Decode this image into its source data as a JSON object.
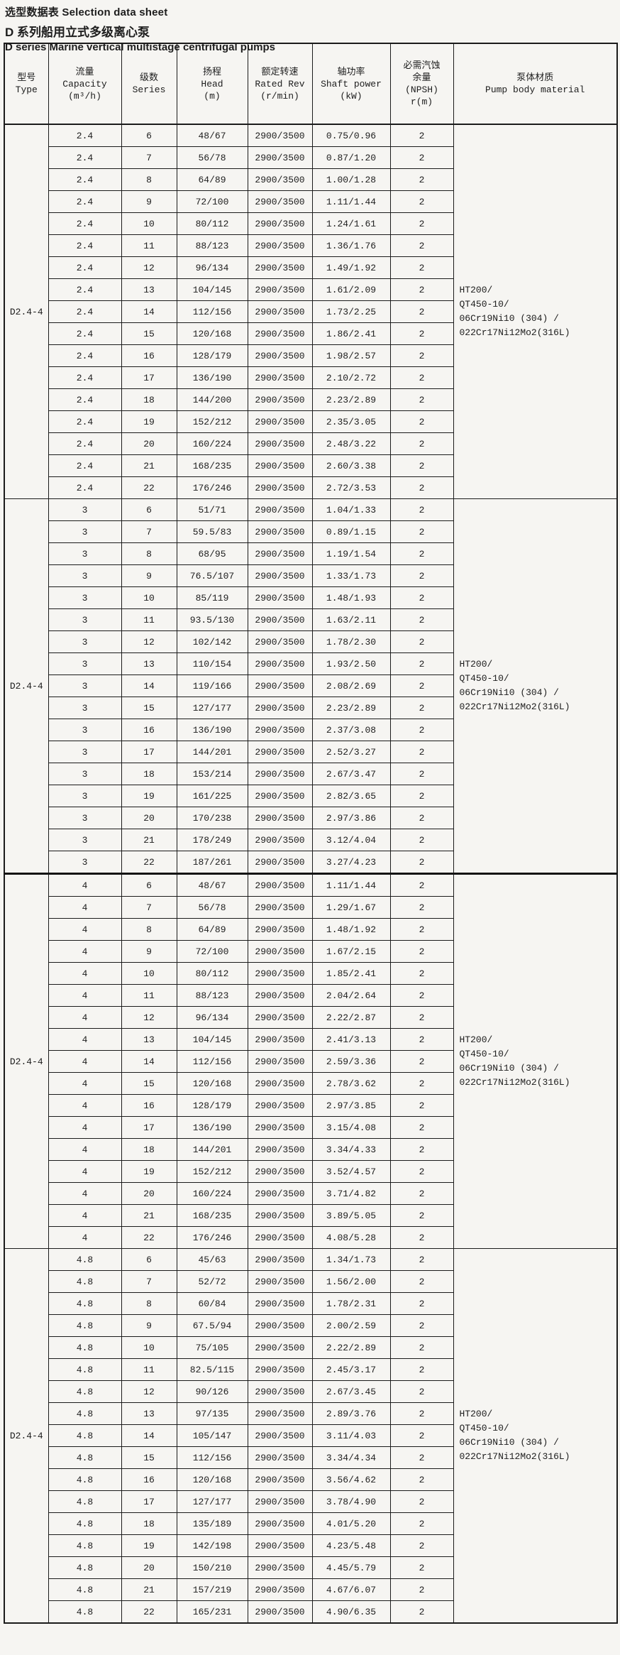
{
  "page": {
    "title_line1": "选型数据表  Selection data sheet",
    "title_line2": "D 系列船用立式多级离心泵",
    "title_line3": "D series Marine vertical multistage centrifugal pumps"
  },
  "table": {
    "headers": [
      {
        "lines": [
          "型号",
          "Type"
        ]
      },
      {
        "lines": [
          "流量",
          "Capacity",
          "(m³/h)"
        ]
      },
      {
        "lines": [
          "级数",
          "Series"
        ]
      },
      {
        "lines": [
          "扬程",
          "Head",
          "(m)"
        ]
      },
      {
        "lines": [
          "额定转速",
          "Rated Rev",
          "(r/min)"
        ]
      },
      {
        "lines": [
          "轴功率",
          "Shaft power",
          "(kW)"
        ]
      },
      {
        "lines": [
          "必需汽蚀",
          "余量",
          "(NPSH)",
          "r(m)"
        ]
      },
      {
        "lines": [
          "泵体材质",
          "Pump body material"
        ]
      }
    ],
    "material_lines": [
      "HT200/",
      "QT450-10/",
      "06Cr19Ni10 (304) /",
      "022Cr17Ni12Mo2(316L)"
    ],
    "blocks": [
      {
        "type": "D2.4-4",
        "capacity": "2.4",
        "rows": [
          {
            "series": "6",
            "head": "48/67",
            "rev": "2900/3500",
            "power": "0.75/0.96",
            "npsh": "2"
          },
          {
            "series": "7",
            "head": "56/78",
            "rev": "2900/3500",
            "power": "0.87/1.20",
            "npsh": "2"
          },
          {
            "series": "8",
            "head": "64/89",
            "rev": "2900/3500",
            "power": "1.00/1.28",
            "npsh": "2"
          },
          {
            "series": "9",
            "head": "72/100",
            "rev": "2900/3500",
            "power": "1.11/1.44",
            "npsh": "2"
          },
          {
            "series": "10",
            "head": "80/112",
            "rev": "2900/3500",
            "power": "1.24/1.61",
            "npsh": "2"
          },
          {
            "series": "11",
            "head": "88/123",
            "rev": "2900/3500",
            "power": "1.36/1.76",
            "npsh": "2"
          },
          {
            "series": "12",
            "head": "96/134",
            "rev": "2900/3500",
            "power": "1.49/1.92",
            "npsh": "2"
          },
          {
            "series": "13",
            "head": "104/145",
            "rev": "2900/3500",
            "power": "1.61/2.09",
            "npsh": "2"
          },
          {
            "series": "14",
            "head": "112/156",
            "rev": "2900/3500",
            "power": "1.73/2.25",
            "npsh": "2"
          },
          {
            "series": "15",
            "head": "120/168",
            "rev": "2900/3500",
            "power": "1.86/2.41",
            "npsh": "2"
          },
          {
            "series": "16",
            "head": "128/179",
            "rev": "2900/3500",
            "power": "1.98/2.57",
            "npsh": "2"
          },
          {
            "series": "17",
            "head": "136/190",
            "rev": "2900/3500",
            "power": "2.10/2.72",
            "npsh": "2"
          },
          {
            "series": "18",
            "head": "144/200",
            "rev": "2900/3500",
            "power": "2.23/2.89",
            "npsh": "2"
          },
          {
            "series": "19",
            "head": "152/212",
            "rev": "2900/3500",
            "power": "2.35/3.05",
            "npsh": "2"
          },
          {
            "series": "20",
            "head": "160/224",
            "rev": "2900/3500",
            "power": "2.48/3.22",
            "npsh": "2"
          },
          {
            "series": "21",
            "head": "168/235",
            "rev": "2900/3500",
            "power": "2.60/3.38",
            "npsh": "2"
          },
          {
            "series": "22",
            "head": "176/246",
            "rev": "2900/3500",
            "power": "2.72/3.53",
            "npsh": "2"
          }
        ]
      },
      {
        "type": "D2.4-4",
        "capacity": "3",
        "rows": [
          {
            "series": "6",
            "head": "51/71",
            "rev": "2900/3500",
            "power": "1.04/1.33",
            "npsh": "2"
          },
          {
            "series": "7",
            "head": "59.5/83",
            "rev": "2900/3500",
            "power": "0.89/1.15",
            "npsh": "2"
          },
          {
            "series": "8",
            "head": "68/95",
            "rev": "2900/3500",
            "power": "1.19/1.54",
            "npsh": "2"
          },
          {
            "series": "9",
            "head": "76.5/107",
            "rev": "2900/3500",
            "power": "1.33/1.73",
            "npsh": "2"
          },
          {
            "series": "10",
            "head": "85/119",
            "rev": "2900/3500",
            "power": "1.48/1.93",
            "npsh": "2"
          },
          {
            "series": "11",
            "head": "93.5/130",
            "rev": "2900/3500",
            "power": "1.63/2.11",
            "npsh": "2"
          },
          {
            "series": "12",
            "head": "102/142",
            "rev": "2900/3500",
            "power": "1.78/2.30",
            "npsh": "2"
          },
          {
            "series": "13",
            "head": "110/154",
            "rev": "2900/3500",
            "power": "1.93/2.50",
            "npsh": "2"
          },
          {
            "series": "14",
            "head": "119/166",
            "rev": "2900/3500",
            "power": "2.08/2.69",
            "npsh": "2"
          },
          {
            "series": "15",
            "head": "127/177",
            "rev": "2900/3500",
            "power": "2.23/2.89",
            "npsh": "2"
          },
          {
            "series": "16",
            "head": "136/190",
            "rev": "2900/3500",
            "power": "2.37/3.08",
            "npsh": "2"
          },
          {
            "series": "17",
            "head": "144/201",
            "rev": "2900/3500",
            "power": "2.52/3.27",
            "npsh": "2"
          },
          {
            "series": "18",
            "head": "153/214",
            "rev": "2900/3500",
            "power": "2.67/3.47",
            "npsh": "2"
          },
          {
            "series": "19",
            "head": "161/225",
            "rev": "2900/3500",
            "power": "2.82/3.65",
            "npsh": "2"
          },
          {
            "series": "20",
            "head": "170/238",
            "rev": "2900/3500",
            "power": "2.97/3.86",
            "npsh": "2"
          },
          {
            "series": "21",
            "head": "178/249",
            "rev": "2900/3500",
            "power": "3.12/4.04",
            "npsh": "2"
          },
          {
            "series": "22",
            "head": "187/261",
            "rev": "2900/3500",
            "power": "3.27/4.23",
            "npsh": "2"
          }
        ]
      },
      {
        "type": "D2.4-4",
        "capacity": "4",
        "rows": [
          {
            "series": "6",
            "head": "48/67",
            "rev": "2900/3500",
            "power": "1.11/1.44",
            "npsh": "2"
          },
          {
            "series": "7",
            "head": "56/78",
            "rev": "2900/3500",
            "power": "1.29/1.67",
            "npsh": "2"
          },
          {
            "series": "8",
            "head": "64/89",
            "rev": "2900/3500",
            "power": "1.48/1.92",
            "npsh": "2"
          },
          {
            "series": "9",
            "head": "72/100",
            "rev": "2900/3500",
            "power": "1.67/2.15",
            "npsh": "2"
          },
          {
            "series": "10",
            "head": "80/112",
            "rev": "2900/3500",
            "power": "1.85/2.41",
            "npsh": "2"
          },
          {
            "series": "11",
            "head": "88/123",
            "rev": "2900/3500",
            "power": "2.04/2.64",
            "npsh": "2"
          },
          {
            "series": "12",
            "head": "96/134",
            "rev": "2900/3500",
            "power": "2.22/2.87",
            "npsh": "2"
          },
          {
            "series": "13",
            "head": "104/145",
            "rev": "2900/3500",
            "power": "2.41/3.13",
            "npsh": "2"
          },
          {
            "series": "14",
            "head": "112/156",
            "rev": "2900/3500",
            "power": "2.59/3.36",
            "npsh": "2"
          },
          {
            "series": "15",
            "head": "120/168",
            "rev": "2900/3500",
            "power": "2.78/3.62",
            "npsh": "2"
          },
          {
            "series": "16",
            "head": "128/179",
            "rev": "2900/3500",
            "power": "2.97/3.85",
            "npsh": "2"
          },
          {
            "series": "17",
            "head": "136/190",
            "rev": "2900/3500",
            "power": "3.15/4.08",
            "npsh": "2"
          },
          {
            "series": "18",
            "head": "144/201",
            "rev": "2900/3500",
            "power": "3.34/4.33",
            "npsh": "2"
          },
          {
            "series": "19",
            "head": "152/212",
            "rev": "2900/3500",
            "power": "3.52/4.57",
            "npsh": "2"
          },
          {
            "series": "20",
            "head": "160/224",
            "rev": "2900/3500",
            "power": "3.71/4.82",
            "npsh": "2"
          },
          {
            "series": "21",
            "head": "168/235",
            "rev": "2900/3500",
            "power": "3.89/5.05",
            "npsh": "2"
          },
          {
            "series": "22",
            "head": "176/246",
            "rev": "2900/3500",
            "power": "4.08/5.28",
            "npsh": "2"
          }
        ]
      },
      {
        "type": "D2.4-4",
        "capacity": "4.8",
        "rows": [
          {
            "series": "6",
            "head": "45/63",
            "rev": "2900/3500",
            "power": "1.34/1.73",
            "npsh": "2"
          },
          {
            "series": "7",
            "head": "52/72",
            "rev": "2900/3500",
            "power": "1.56/2.00",
            "npsh": "2"
          },
          {
            "series": "8",
            "head": "60/84",
            "rev": "2900/3500",
            "power": "1.78/2.31",
            "npsh": "2"
          },
          {
            "series": "9",
            "head": "67.5/94",
            "rev": "2900/3500",
            "power": "2.00/2.59",
            "npsh": "2"
          },
          {
            "series": "10",
            "head": "75/105",
            "rev": "2900/3500",
            "power": "2.22/2.89",
            "npsh": "2"
          },
          {
            "series": "11",
            "head": "82.5/115",
            "rev": "2900/3500",
            "power": "2.45/3.17",
            "npsh": "2"
          },
          {
            "series": "12",
            "head": "90/126",
            "rev": "2900/3500",
            "power": "2.67/3.45",
            "npsh": "2"
          },
          {
            "series": "13",
            "head": "97/135",
            "rev": "2900/3500",
            "power": "2.89/3.76",
            "npsh": "2"
          },
          {
            "series": "14",
            "head": "105/147",
            "rev": "2900/3500",
            "power": "3.11/4.03",
            "npsh": "2"
          },
          {
            "series": "15",
            "head": "112/156",
            "rev": "2900/3500",
            "power": "3.34/4.34",
            "npsh": "2"
          },
          {
            "series": "16",
            "head": "120/168",
            "rev": "2900/3500",
            "power": "3.56/4.62",
            "npsh": "2"
          },
          {
            "series": "17",
            "head": "127/177",
            "rev": "2900/3500",
            "power": "3.78/4.90",
            "npsh": "2"
          },
          {
            "series": "18",
            "head": "135/189",
            "rev": "2900/3500",
            "power": "4.01/5.20",
            "npsh": "2"
          },
          {
            "series": "19",
            "head": "142/198",
            "rev": "2900/3500",
            "power": "4.23/5.48",
            "npsh": "2"
          },
          {
            "series": "20",
            "head": "150/210",
            "rev": "2900/3500",
            "power": "4.45/5.79",
            "npsh": "2"
          },
          {
            "series": "21",
            "head": "157/219",
            "rev": "2900/3500",
            "power": "4.67/6.07",
            "npsh": "2"
          },
          {
            "series": "22",
            "head": "165/231",
            "rev": "2900/3500",
            "power": "4.90/6.35",
            "npsh": "2"
          }
        ]
      }
    ]
  }
}
